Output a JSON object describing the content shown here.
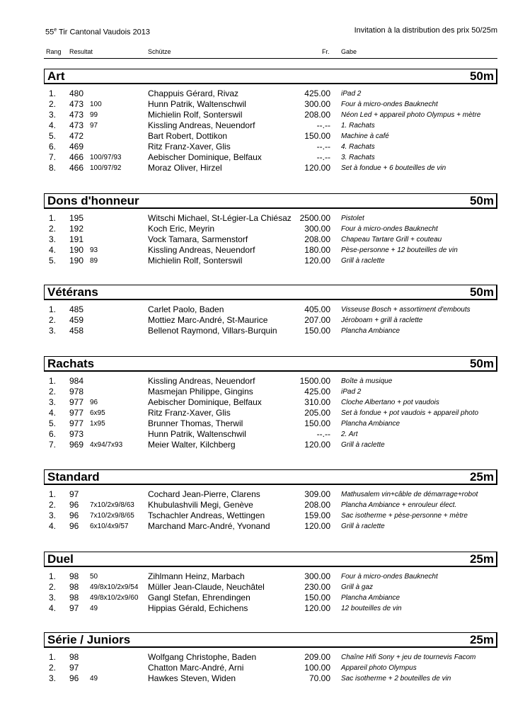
{
  "header": {
    "title_number": "55",
    "title_sup": "e",
    "title_rest": " Tir Cantonal Vaudois 2013",
    "subtitle": "Invitation à la distribution des prix 50/25m"
  },
  "columns": {
    "rang": "Rang",
    "resultat": "Resultat",
    "schuetze": "Schütze",
    "fr": "Fr.",
    "gabe": "Gabe"
  },
  "sections": [
    {
      "title": "Art",
      "distance": "50m",
      "rows": [
        [
          "1.",
          "480",
          "",
          "Chappuis Gérard, Rivaz",
          "425.00",
          "iPad 2"
        ],
        [
          "2.",
          "473",
          "100",
          "Hunn Patrik, Waltenschwil",
          "300.00",
          "Four à micro-ondes Bauknecht"
        ],
        [
          "3.",
          "473",
          "99",
          "Michielin Rolf, Sonterswil",
          "208.00",
          "Néon Led + appareil photo Olympus + mètre"
        ],
        [
          "4.",
          "473",
          "97",
          "Kissling Andreas, Neuendorf",
          "--.--",
          "1. Rachats"
        ],
        [
          "5.",
          "472",
          "",
          "Bart Robert, Dottikon",
          "150.00",
          "Machine à café"
        ],
        [
          "6.",
          "469",
          "",
          "Ritz Franz-Xaver, Glis",
          "--.--",
          "4. Rachats"
        ],
        [
          "7.",
          "466",
          "100/97/93",
          "Aebischer Dominique, Belfaux",
          "--.--",
          "3. Rachats"
        ],
        [
          "8.",
          "466",
          "100/97/92",
          "Moraz Oliver, Hirzel",
          "120.00",
          "Set à fondue + 6 bouteilles de vin"
        ]
      ]
    },
    {
      "title": "Dons d'honneur",
      "distance": "50m",
      "rows": [
        [
          "1.",
          "195",
          "",
          "Witschi Michael, St-Légier-La Chiésaz",
          "2500.00",
          "Pistolet"
        ],
        [
          "2.",
          "192",
          "",
          "Koch Eric, Meyrin",
          "300.00",
          "Four à micro-ondes Bauknecht"
        ],
        [
          "3.",
          "191",
          "",
          "Vock Tamara, Sarmenstorf",
          "208.00",
          "Chapeau Tartare Grill + couteau"
        ],
        [
          "4.",
          "190",
          "93",
          "Kissling Andreas, Neuendorf",
          "180.00",
          "Pèse-personne + 12 bouteilles de vin"
        ],
        [
          "5.",
          "190",
          "89",
          "Michielin Rolf, Sonterswil",
          "120.00",
          "Grill à raclette"
        ]
      ]
    },
    {
      "title": "Vétérans",
      "distance": "50m",
      "rows": [
        [
          "1.",
          "485",
          "",
          "Carlet Paolo, Baden",
          "405.00",
          "Visseuse Bosch + assortiment d'embouts"
        ],
        [
          "2.",
          "459",
          "",
          "Mottiez Marc-André, St-Maurice",
          "207.00",
          "Jéroboam + grill à raclette"
        ],
        [
          "3.",
          "458",
          "",
          "Bellenot Raymond, Villars-Burquin",
          "150.00",
          "Plancha Ambiance"
        ]
      ]
    },
    {
      "title": "Rachats",
      "distance": "50m",
      "rows": [
        [
          "1.",
          "984",
          "",
          "Kissling Andreas, Neuendorf",
          "1500.00",
          "Boîte à musique"
        ],
        [
          "2.",
          "978",
          "",
          "Masmejan Philippe, Gingins",
          "425.00",
          "iPad 2"
        ],
        [
          "3.",
          "977",
          "96",
          "Aebischer Dominique, Belfaux",
          "310.00",
          "Cloche Albertano + pot vaudois"
        ],
        [
          "4.",
          "977",
          "6x95",
          "Ritz Franz-Xaver, Glis",
          "205.00",
          "Set à fondue + pot vaudois + appareil photo"
        ],
        [
          "5.",
          "977",
          "1x95",
          "Brunner Thomas, Therwil",
          "150.00",
          "Plancha Ambiance"
        ],
        [
          "6.",
          "973",
          "",
          "Hunn Patrik, Waltenschwil",
          "--.--",
          "2. Art"
        ],
        [
          "7.",
          "969",
          "4x94/7x93",
          "Meier Walter, Kilchberg",
          "120.00",
          "Grill à raclette"
        ]
      ]
    },
    {
      "title": "Standard",
      "distance": "25m",
      "rows": [
        [
          "1.",
          "97",
          "",
          "Cochard Jean-Pierre, Clarens",
          "309.00",
          "Mathusalem vin+câble de démarrage+robot"
        ],
        [
          "2.",
          "96",
          "7x10/2x9/8/63",
          "Khubulashvili Megi, Genève",
          "208.00",
          "Plancha Ambiance + enrouleur élect."
        ],
        [
          "3.",
          "96",
          "7x10/2x9/8/65",
          "Tschachler Andreas, Wettingen",
          "159.00",
          "Sac isotherme + pèse-personne + mètre"
        ],
        [
          "4.",
          "96",
          "6x10/4x9/57",
          "Marchand Marc-André, Yvonand",
          "120.00",
          "Grill à raclette"
        ]
      ]
    },
    {
      "title": "Duel",
      "distance": "25m",
      "rows": [
        [
          "1.",
          "98",
          "50",
          "Zihlmann Heinz, Marbach",
          "300.00",
          "Four à micro-ondes Bauknecht"
        ],
        [
          "2.",
          "98",
          "49/8x10/2x9/54",
          "Müller Jean-Claude, Neuchâtel",
          "230.00",
          "Grill à gaz"
        ],
        [
          "3.",
          "98",
          "49/8x10/2x9/60",
          "Gangl Stefan, Ehrendingen",
          "150.00",
          "Plancha Ambiance"
        ],
        [
          "4.",
          "97",
          "49",
          "Hippias Gérald, Echichens",
          "120.00",
          "12 bouteilles de vin"
        ]
      ]
    },
    {
      "title": "Série / Juniors",
      "distance": "25m",
      "rows": [
        [
          "1.",
          "98",
          "",
          "Wolfgang Christophe, Baden",
          "209.00",
          "Chaîne Hifi Sony + jeu de tournevis Facom"
        ],
        [
          "2.",
          "97",
          "",
          "Chatton Marc-André, Arni",
          "100.00",
          "Appareil photo Olympus"
        ],
        [
          "3.",
          "96",
          "49",
          "Hawkes Steven, Widen",
          "70.00",
          "Sac isotherme + 2 bouteilles de vin"
        ]
      ]
    }
  ]
}
